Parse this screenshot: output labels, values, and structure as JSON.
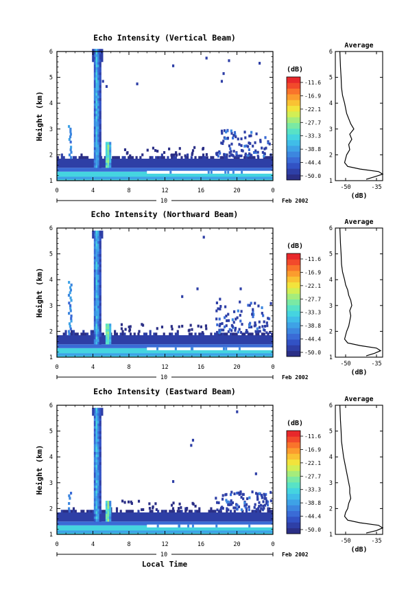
{
  "colors": {
    "scale": [
      "#2b2f86",
      "#2e3fa6",
      "#3252c4",
      "#3a6bd6",
      "#3c86df",
      "#3ea2e6",
      "#40bde8",
      "#45d4e0",
      "#58e2c6",
      "#7ae9a4",
      "#a5ec7c",
      "#d2ee55",
      "#f2e33c",
      "#f9c233",
      "#fb9c2e",
      "#f9742b",
      "#f24a2b",
      "#e8282b"
    ],
    "white_band": "#ffffff"
  },
  "shared": {
    "date_label": "Feb 2002",
    "day_label": "10",
    "x_axis_title": "Local Time",
    "y_axis_title": "Height (km)",
    "colorbar_unit": "(dB)",
    "avg_title": "Average",
    "avg_xlabel": "(dB)"
  },
  "chart_data": [
    {
      "type": "heatmap",
      "title": "Echo Intensity (Vertical Beam)",
      "xlabel": "",
      "ylabel": "Height (km)",
      "x_ticks": [
        "0",
        "4",
        "8",
        "12",
        "16",
        "20",
        "0"
      ],
      "xlim": [
        0,
        24
      ],
      "y_ticks": [
        "1",
        "2",
        "3",
        "4",
        "5",
        "6"
      ],
      "ylim": [
        1,
        6
      ],
      "colorbar": {
        "label": "(dB)",
        "ticks": [
          "-11.6",
          "-16.9",
          "-22.1",
          "-27.7",
          "-33.3",
          "-38.8",
          "-44.4",
          "-50.0"
        ],
        "range": [
          -50.0,
          -11.6
        ]
      },
      "features": {
        "spike_top_km": 6.0,
        "spike2_top_km": 2.5,
        "left_plume_top_km": 3.2,
        "white_band_start_h": 10,
        "right_cluster_top_km": 2.9,
        "dots": [
          [
            12.8,
            5.4
          ],
          [
            16.5,
            5.7
          ],
          [
            18.4,
            5.1
          ],
          [
            19.0,
            5.6
          ],
          [
            22.4,
            5.5
          ],
          [
            8.8,
            4.7
          ],
          [
            5.0,
            4.8
          ],
          [
            5.4,
            4.6
          ],
          [
            18.2,
            4.8
          ]
        ]
      },
      "average_profile": {
        "xlabel": "(dB)",
        "xlim": [
          -55,
          -32
        ],
        "x_ticks": [
          "-50",
          "-35"
        ],
        "height_km": [
          1.05,
          1.15,
          1.25,
          1.35,
          1.45,
          1.55,
          1.7,
          1.85,
          2.0,
          2.2,
          2.4,
          2.6,
          2.8,
          3.0,
          3.2,
          3.4,
          3.6,
          3.8,
          4.0,
          4.3,
          4.6,
          5.0,
          5.4,
          5.8,
          6.0
        ],
        "values_db": [
          -40,
          -36,
          -32,
          -34,
          -43,
          -49,
          -50.5,
          -50,
          -49.5,
          -48,
          -48.5,
          -47,
          -48,
          -46,
          -47.5,
          -48.5,
          -49.5,
          -50,
          -50.5,
          -51.5,
          -52,
          -52.2,
          -52.5,
          -52.7,
          -52.8
        ]
      }
    },
    {
      "type": "heatmap",
      "title": "Echo Intensity (Northward Beam)",
      "xlabel": "",
      "ylabel": "Height (km)",
      "x_ticks": [
        "0",
        "4",
        "8",
        "12",
        "16",
        "20",
        "0"
      ],
      "xlim": [
        0,
        24
      ],
      "y_ticks": [
        "1",
        "2",
        "3",
        "4",
        "5",
        "6"
      ],
      "ylim": [
        1,
        6
      ],
      "colorbar": {
        "label": "(dB)",
        "ticks": [
          "-11.6",
          "-16.9",
          "-22.1",
          "-27.7",
          "-33.3",
          "-38.8",
          "-44.4",
          "-50.0"
        ],
        "range": [
          -50.0,
          -11.6
        ]
      },
      "features": {
        "spike_top_km": 5.8,
        "spike2_top_km": 2.3,
        "left_plume_top_km": 3.9,
        "white_band_start_h": 10,
        "right_cluster_top_km": 3.1,
        "dots": [
          [
            16.2,
            5.6
          ],
          [
            13.8,
            3.3
          ],
          [
            15.5,
            3.6
          ],
          [
            20.3,
            3.6
          ],
          [
            18.0,
            3.2
          ]
        ]
      },
      "average_profile": {
        "xlabel": "(dB)",
        "xlim": [
          -55,
          -32
        ],
        "x_ticks": [
          "-50",
          "-35"
        ],
        "height_km": [
          1.05,
          1.15,
          1.25,
          1.35,
          1.45,
          1.55,
          1.7,
          1.85,
          2.0,
          2.2,
          2.4,
          2.6,
          2.8,
          3.0,
          3.2,
          3.4,
          3.6,
          3.8,
          4.0,
          4.3,
          4.6,
          5.0,
          5.4,
          5.8,
          6.0
        ],
        "values_db": [
          -40,
          -36,
          -33,
          -35,
          -43,
          -49,
          -50.5,
          -50,
          -49.5,
          -48.5,
          -48,
          -47.5,
          -48,
          -47,
          -47.5,
          -48.5,
          -49,
          -50,
          -50.5,
          -51.5,
          -52,
          -52.2,
          -52.5,
          -52.7,
          -52.8
        ]
      }
    },
    {
      "type": "heatmap",
      "title": "Echo Intensity (Eastward Beam)",
      "xlabel": "Local Time",
      "ylabel": "Height (km)",
      "x_ticks": [
        "0",
        "4",
        "8",
        "12",
        "16",
        "20",
        "0"
      ],
      "xlim": [
        0,
        24
      ],
      "y_ticks": [
        "1",
        "2",
        "3",
        "4",
        "5",
        "6"
      ],
      "ylim": [
        1,
        6
      ],
      "colorbar": {
        "label": "(dB)",
        "ticks": [
          "-11.6",
          "-16.9",
          "-22.1",
          "-27.7",
          "-33.3",
          "-38.8",
          "-44.4",
          "-50.0"
        ],
        "range": [
          -50.0,
          -11.6
        ]
      },
      "features": {
        "spike_top_km": 5.8,
        "spike2_top_km": 2.3,
        "left_plume_top_km": 2.6,
        "white_band_start_h": 10,
        "right_cluster_top_km": 2.6,
        "dots": [
          [
            14.8,
            4.4
          ],
          [
            15.0,
            4.6
          ],
          [
            19.9,
            5.7
          ],
          [
            12.8,
            3.0
          ],
          [
            22.0,
            3.3
          ],
          [
            18.7,
            2.5
          ],
          [
            20.3,
            2.6
          ]
        ]
      },
      "average_profile": {
        "xlabel": "(dB)",
        "xlim": [
          -55,
          -32
        ],
        "x_ticks": [
          "-50",
          "-35"
        ],
        "height_km": [
          1.05,
          1.15,
          1.25,
          1.35,
          1.45,
          1.55,
          1.7,
          1.85,
          2.0,
          2.2,
          2.4,
          2.6,
          2.8,
          3.0,
          3.2,
          3.4,
          3.6,
          3.8,
          4.0,
          4.3,
          4.6,
          5.0,
          5.4,
          5.8,
          6.0
        ],
        "values_db": [
          -40,
          -35,
          -32,
          -34,
          -43,
          -49,
          -50.5,
          -50,
          -49,
          -48.5,
          -47.5,
          -48,
          -48,
          -48.5,
          -49,
          -49.5,
          -50,
          -50.5,
          -51,
          -51.5,
          -52,
          -52.2,
          -52.5,
          -52.7,
          -52.8
        ]
      }
    }
  ]
}
